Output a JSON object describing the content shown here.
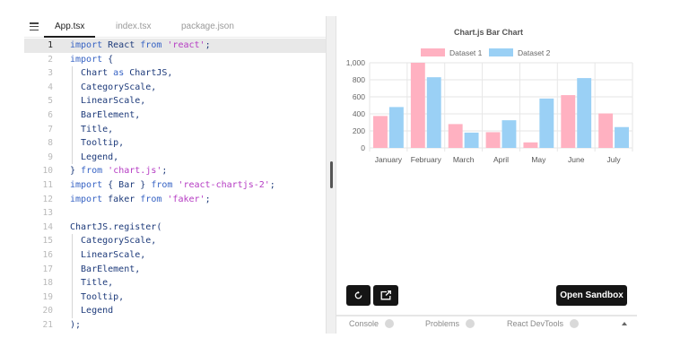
{
  "editor": {
    "tabs": [
      {
        "label": "App.tsx",
        "active": true
      },
      {
        "label": "index.tsx",
        "active": false
      },
      {
        "label": "package.json",
        "active": false
      }
    ],
    "current_line": 1,
    "lines": [
      {
        "n": "1",
        "tokens": [
          [
            "kw",
            "import"
          ],
          [
            "id",
            " React "
          ],
          [
            "kw",
            "from"
          ],
          [
            "id",
            " "
          ],
          [
            "str",
            "'react'"
          ],
          [
            "id",
            ";"
          ]
        ]
      },
      {
        "n": "2",
        "tokens": [
          [
            "kw",
            "import"
          ],
          [
            "id",
            " {"
          ]
        ]
      },
      {
        "n": "3",
        "tokens": [
          [
            "id",
            "  Chart "
          ],
          [
            "kw",
            "as"
          ],
          [
            "id",
            " ChartJS,"
          ]
        ]
      },
      {
        "n": "4",
        "tokens": [
          [
            "id",
            "  CategoryScale,"
          ]
        ]
      },
      {
        "n": "5",
        "tokens": [
          [
            "id",
            "  LinearScale,"
          ]
        ]
      },
      {
        "n": "6",
        "tokens": [
          [
            "id",
            "  BarElement,"
          ]
        ]
      },
      {
        "n": "7",
        "tokens": [
          [
            "id",
            "  Title,"
          ]
        ]
      },
      {
        "n": "8",
        "tokens": [
          [
            "id",
            "  Tooltip,"
          ]
        ]
      },
      {
        "n": "9",
        "tokens": [
          [
            "id",
            "  Legend,"
          ]
        ]
      },
      {
        "n": "10",
        "tokens": [
          [
            "id",
            "} "
          ],
          [
            "kw",
            "from"
          ],
          [
            "id",
            " "
          ],
          [
            "str",
            "'chart.js'"
          ],
          [
            "id",
            ";"
          ]
        ]
      },
      {
        "n": "11",
        "tokens": [
          [
            "kw",
            "import"
          ],
          [
            "id",
            " { Bar } "
          ],
          [
            "kw",
            "from"
          ],
          [
            "id",
            " "
          ],
          [
            "str",
            "'react-chartjs-2'"
          ],
          [
            "id",
            ";"
          ]
        ]
      },
      {
        "n": "12",
        "tokens": [
          [
            "kw",
            "import"
          ],
          [
            "id",
            " faker "
          ],
          [
            "kw",
            "from"
          ],
          [
            "id",
            " "
          ],
          [
            "str",
            "'faker'"
          ],
          [
            "id",
            ";"
          ]
        ]
      },
      {
        "n": "13",
        "tokens": []
      },
      {
        "n": "14",
        "tokens": [
          [
            "id",
            "ChartJS.register("
          ]
        ]
      },
      {
        "n": "15",
        "tokens": [
          [
            "id",
            "  CategoryScale,"
          ]
        ]
      },
      {
        "n": "16",
        "tokens": [
          [
            "id",
            "  LinearScale,"
          ]
        ]
      },
      {
        "n": "17",
        "tokens": [
          [
            "id",
            "  BarElement,"
          ]
        ]
      },
      {
        "n": "18",
        "tokens": [
          [
            "id",
            "  Title,"
          ]
        ]
      },
      {
        "n": "19",
        "tokens": [
          [
            "id",
            "  Tooltip,"
          ]
        ]
      },
      {
        "n": "20",
        "tokens": [
          [
            "id",
            "  Legend"
          ]
        ]
      },
      {
        "n": "21",
        "tokens": [
          [
            "id",
            ");"
          ]
        ]
      }
    ]
  },
  "preview": {
    "buttons": {
      "refresh_icon": "refresh-icon",
      "new_window_icon": "open-new-window-icon",
      "open_sandbox": "Open Sandbox"
    },
    "console_tabs": [
      {
        "label": "Console"
      },
      {
        "label": "Problems"
      },
      {
        "label": "React DevTools"
      }
    ]
  },
  "chart_data": {
    "type": "bar",
    "title": "Chart.js Bar Chart",
    "categories": [
      "January",
      "February",
      "March",
      "April",
      "May",
      "June",
      "July"
    ],
    "series": [
      {
        "name": "Dataset 1",
        "color": "#ffb1c1",
        "values": [
          375,
          1000,
          280,
          185,
          65,
          620,
          405
        ]
      },
      {
        "name": "Dataset 2",
        "color": "#9ad0f5",
        "values": [
          480,
          830,
          180,
          325,
          580,
          820,
          245
        ]
      }
    ],
    "ylim": [
      0,
      1000
    ],
    "yticks": [
      "0",
      "200",
      "400",
      "600",
      "800",
      "1,000"
    ],
    "ytick_values": [
      0,
      200,
      400,
      600,
      800,
      1000
    ],
    "legend_position": "top",
    "grid": true
  }
}
